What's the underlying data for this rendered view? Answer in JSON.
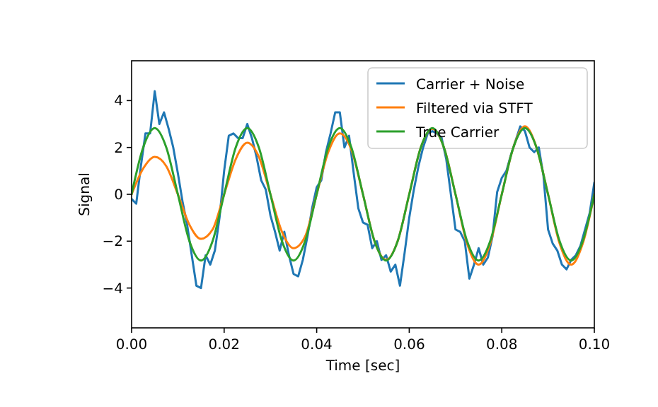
{
  "chart_data": {
    "type": "line",
    "xlabel": "Time [sec]",
    "ylabel": "Signal",
    "xlim": [
      0,
      0.1
    ],
    "ylim": [
      -5.7,
      5.7
    ],
    "xticks": [
      {
        "value": 0,
        "label": "0.00"
      },
      {
        "value": 0.02,
        "label": "0.02"
      },
      {
        "value": 0.04,
        "label": "0.04"
      },
      {
        "value": 0.06,
        "label": "0.06"
      },
      {
        "value": 0.08,
        "label": "0.08"
      },
      {
        "value": 0.1,
        "label": "0.10"
      }
    ],
    "yticks": [
      -4,
      -2,
      0,
      2,
      4
    ],
    "grid": false,
    "legend": "top right",
    "line_style": "solid",
    "marker": "none",
    "series": [
      {
        "name": "Carrier + Noise",
        "color": "#1f77b4",
        "x": [
          0,
          0.001,
          0.002,
          0.003,
          0.004,
          0.005,
          0.006,
          0.007,
          0.008,
          0.009,
          0.01,
          0.011,
          0.012,
          0.013,
          0.014,
          0.015,
          0.016,
          0.017,
          0.018,
          0.019,
          0.02,
          0.021,
          0.022,
          0.023,
          0.024,
          0.025,
          0.026,
          0.027,
          0.028,
          0.029,
          0.03,
          0.031,
          0.032,
          0.033,
          0.034,
          0.035,
          0.036,
          0.037,
          0.038,
          0.039,
          0.04,
          0.041,
          0.042,
          0.043,
          0.044,
          0.045,
          0.046,
          0.047,
          0.048,
          0.049,
          0.05,
          0.051,
          0.052,
          0.053,
          0.054,
          0.055,
          0.056,
          0.057,
          0.058,
          0.059,
          0.06,
          0.061,
          0.062,
          0.063,
          0.064,
          0.065,
          0.066,
          0.067,
          0.068,
          0.069,
          0.07,
          0.071,
          0.072,
          0.073,
          0.074,
          0.075,
          0.076,
          0.077,
          0.078,
          0.079,
          0.08,
          0.081,
          0.082,
          0.083,
          0.084,
          0.085,
          0.086,
          0.087,
          0.088,
          0.089,
          0.09,
          0.091,
          0.092,
          0.093,
          0.094,
          0.095,
          0.096,
          0.097,
          0.098,
          0.099,
          0.1
        ],
        "values": [
          -0.2,
          -0.4,
          1.2,
          2.6,
          2.6,
          4.4,
          3.0,
          3.5,
          2.8,
          2.0,
          0.9,
          -0.3,
          -1.3,
          -2.6,
          -3.9,
          -4.0,
          -2.6,
          -3.0,
          -2.4,
          -1.0,
          1.0,
          2.5,
          2.6,
          2.4,
          2.4,
          3.0,
          2.4,
          1.6,
          0.6,
          0.2,
          -0.9,
          -1.6,
          -2.4,
          -1.6,
          -2.6,
          -3.4,
          -3.5,
          -2.8,
          -1.8,
          -0.6,
          0.3,
          0.6,
          1.8,
          2.6,
          3.5,
          3.5,
          2.0,
          2.5,
          0.9,
          -0.6,
          -1.2,
          -1.3,
          -2.3,
          -2.0,
          -2.8,
          -2.6,
          -3.3,
          -3.0,
          -3.9,
          -2.5,
          -1.0,
          0.2,
          1.2,
          2.0,
          2.6,
          2.7,
          2.6,
          2.4,
          1.5,
          0.0,
          -1.5,
          -1.6,
          -2.0,
          -3.6,
          -3.0,
          -2.3,
          -3.0,
          -2.7,
          -1.8,
          0.1,
          0.7,
          1.0,
          1.7,
          2.3,
          2.9,
          2.7,
          2.0,
          1.8,
          2.0,
          0.8,
          -1.5,
          -2.1,
          -2.4,
          -3.0,
          -3.2,
          -2.8,
          -2.6,
          -2.2,
          -1.5,
          -0.8,
          0.5
        ]
      },
      {
        "name": "Filtered via STFT",
        "color": "#ff7f0e",
        "x": [
          0,
          0.0025,
          0.005,
          0.0075,
          0.01,
          0.0125,
          0.015,
          0.0175,
          0.02,
          0.0225,
          0.025,
          0.0275,
          0.03,
          0.0325,
          0.035,
          0.0375,
          0.04,
          0.0425,
          0.045,
          0.0475,
          0.05,
          0.0525,
          0.055,
          0.0575,
          0.06,
          0.0625,
          0.065,
          0.0675,
          0.07,
          0.0725,
          0.075,
          0.0775,
          0.08,
          0.0825,
          0.085,
          0.0875,
          0.09,
          0.0925,
          0.095,
          0.0975,
          0.1
        ],
        "values": [
          0,
          1.1,
          1.6,
          1.2,
          0,
          -1.3,
          -1.9,
          -1.5,
          0,
          1.5,
          2.2,
          1.6,
          0,
          -1.6,
          -2.3,
          -1.8,
          0,
          1.8,
          2.6,
          1.9,
          0,
          -2.0,
          -2.8,
          -2.0,
          0,
          2.0,
          2.8,
          2.0,
          0,
          -2.1,
          -3.0,
          -2.1,
          0,
          2.0,
          2.9,
          2.0,
          0,
          -2.1,
          -3.0,
          -2.1,
          0
        ]
      },
      {
        "name": "True Carrier",
        "color": "#2ca02c",
        "x": [
          0,
          0.0025,
          0.005,
          0.0075,
          0.01,
          0.0125,
          0.015,
          0.0175,
          0.02,
          0.0225,
          0.025,
          0.0275,
          0.03,
          0.0325,
          0.035,
          0.0375,
          0.04,
          0.0425,
          0.045,
          0.0475,
          0.05,
          0.0525,
          0.055,
          0.0575,
          0.06,
          0.0625,
          0.065,
          0.0675,
          0.07,
          0.0725,
          0.075,
          0.0775,
          0.08,
          0.0825,
          0.085,
          0.0875,
          0.09,
          0.0925,
          0.095,
          0.0975,
          0.1
        ],
        "values": [
          0,
          2.0,
          2.83,
          2.0,
          0,
          -2.0,
          -2.83,
          -2.0,
          0,
          2.0,
          2.83,
          2.0,
          0,
          -2.0,
          -2.83,
          -2.0,
          0,
          2.0,
          2.83,
          2.0,
          0,
          -2.0,
          -2.83,
          -2.0,
          0,
          2.0,
          2.83,
          2.0,
          0,
          -2.0,
          -2.83,
          -2.0,
          0,
          2.0,
          2.83,
          2.0,
          0,
          -2.0,
          -2.83,
          -2.0,
          0
        ]
      }
    ]
  }
}
